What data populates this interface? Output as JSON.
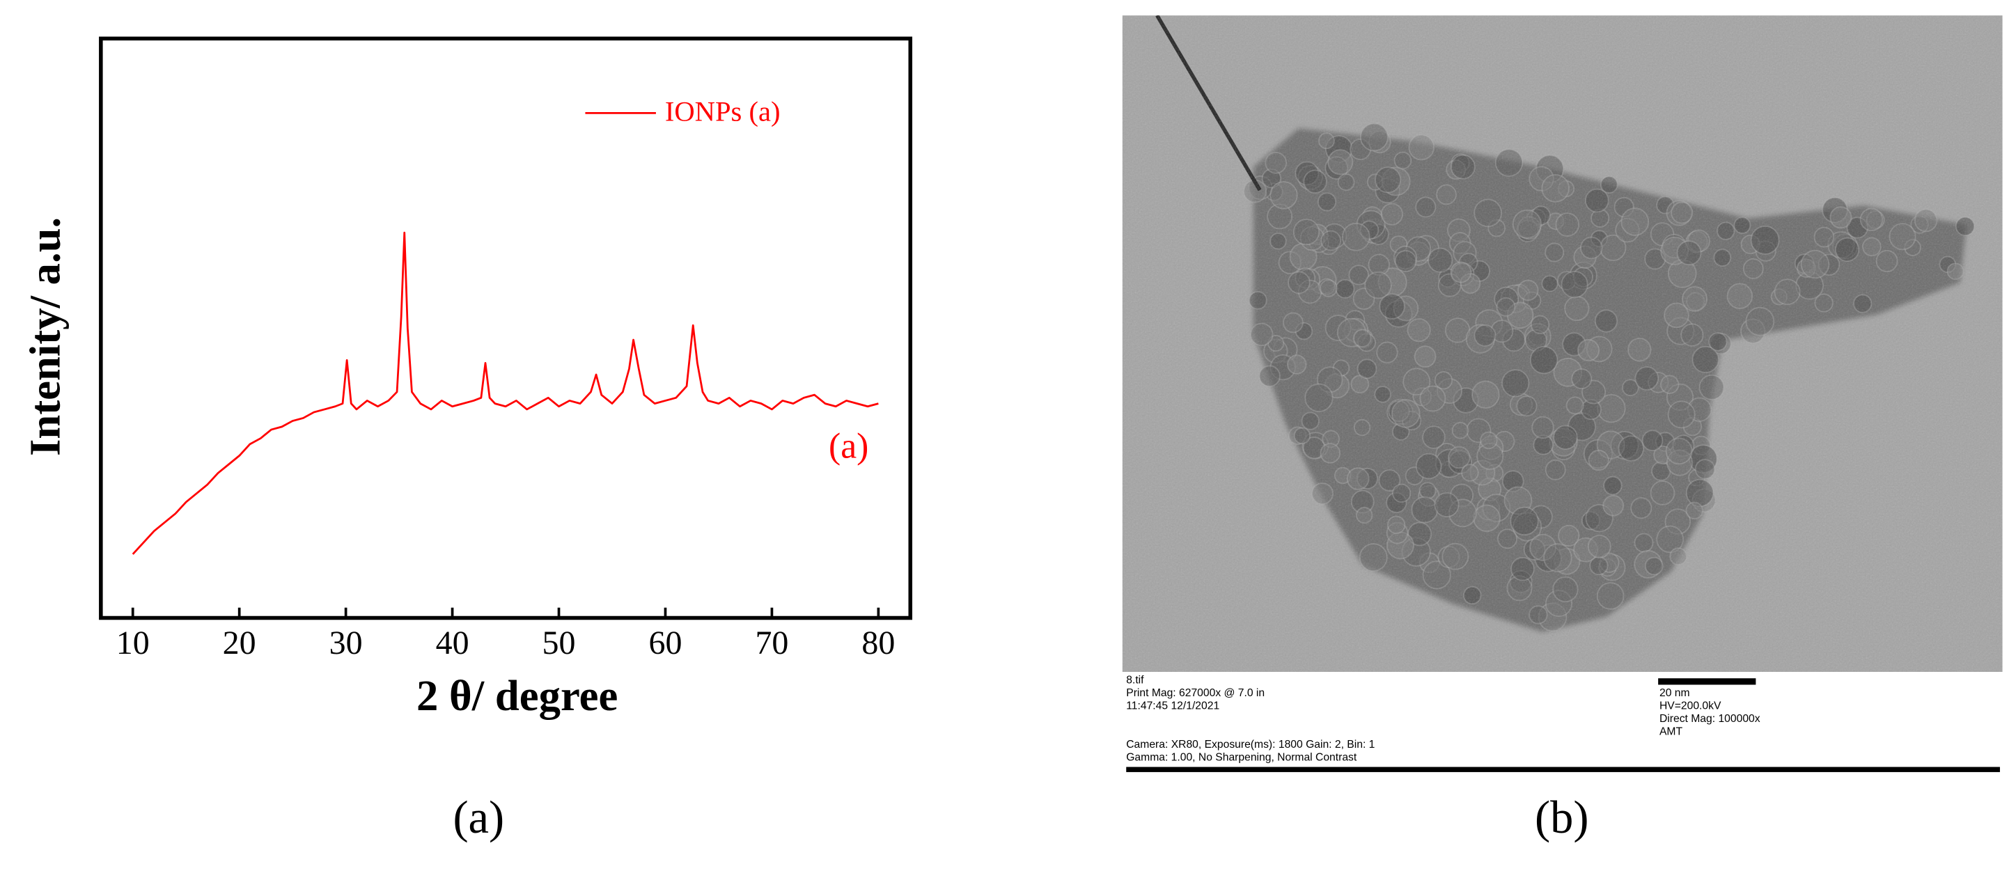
{
  "chart_data": {
    "type": "line",
    "x_label": "2 θ/ degree",
    "y_label": "Intenity/ a.u.",
    "x": [
      10,
      11,
      12,
      13,
      14,
      15,
      16,
      17,
      18,
      19,
      20,
      21,
      22,
      23,
      24,
      25,
      26,
      27,
      28,
      29,
      29.7,
      30.1,
      30.5,
      31,
      32,
      33,
      34,
      34.8,
      35.2,
      35.5,
      35.8,
      36.2,
      37,
      38,
      39,
      40,
      41,
      42,
      42.7,
      43.1,
      43.5,
      44,
      45,
      46,
      47,
      48,
      49,
      50,
      51,
      52,
      53,
      53.5,
      54,
      55,
      56,
      56.6,
      57,
      57.5,
      58,
      59,
      60,
      61,
      62,
      62.6,
      63,
      63.5,
      64,
      65,
      66,
      67,
      68,
      69,
      70,
      71,
      72,
      73,
      74,
      75,
      76,
      77,
      78,
      79,
      80
    ],
    "series": [
      {
        "name": "IONPs (a)",
        "color": "#ff0000",
        "values": [
          11,
          13,
          15,
          16.5,
          18,
          20,
          21.5,
          23,
          25,
          26.5,
          28,
          30,
          31,
          32.5,
          33,
          34,
          34.5,
          35.5,
          36,
          36.5,
          37,
          44.5,
          37,
          36,
          37.5,
          36.5,
          37.5,
          39,
          52,
          66.5,
          50,
          39,
          37,
          36,
          37.5,
          36.5,
          37,
          37.5,
          38,
          44,
          38,
          37,
          36.5,
          37.5,
          36,
          37,
          38,
          36.5,
          37.5,
          37,
          39,
          42,
          38.5,
          37,
          39,
          43,
          48,
          43,
          38.5,
          37,
          37.5,
          38,
          40,
          50.5,
          44,
          39,
          37.5,
          37,
          38,
          36.5,
          37.5,
          37,
          36,
          37.5,
          37,
          38,
          38.5,
          37,
          36.5,
          37.5,
          37,
          36.5,
          37
        ]
      }
    ],
    "annotation": "(a)",
    "xlim": [
      7,
      83
    ],
    "ylim": [
      0,
      100
    ],
    "xticks": [
      10,
      20,
      30,
      40,
      50,
      60,
      70,
      80
    ],
    "legend": "upper right"
  },
  "panels": {
    "a": {
      "caption": "(a)"
    },
    "b": {
      "caption": "(b)",
      "image_text": {
        "file": "8.tif",
        "print_mag": "Print Mag: 627000x @ 7.0 in",
        "time": "11:47:45 12/1/2021",
        "scale": "20 nm",
        "hv": "HV=200.0kV",
        "direct_mag": "Direct Mag: 100000x",
        "maker": "AMT",
        "camera": "Camera: XR80, Exposure(ms): 1800 Gain: 2, Bin: 1",
        "gamma": "Gamma: 1.00, No Sharpening, Normal Contrast"
      }
    }
  }
}
